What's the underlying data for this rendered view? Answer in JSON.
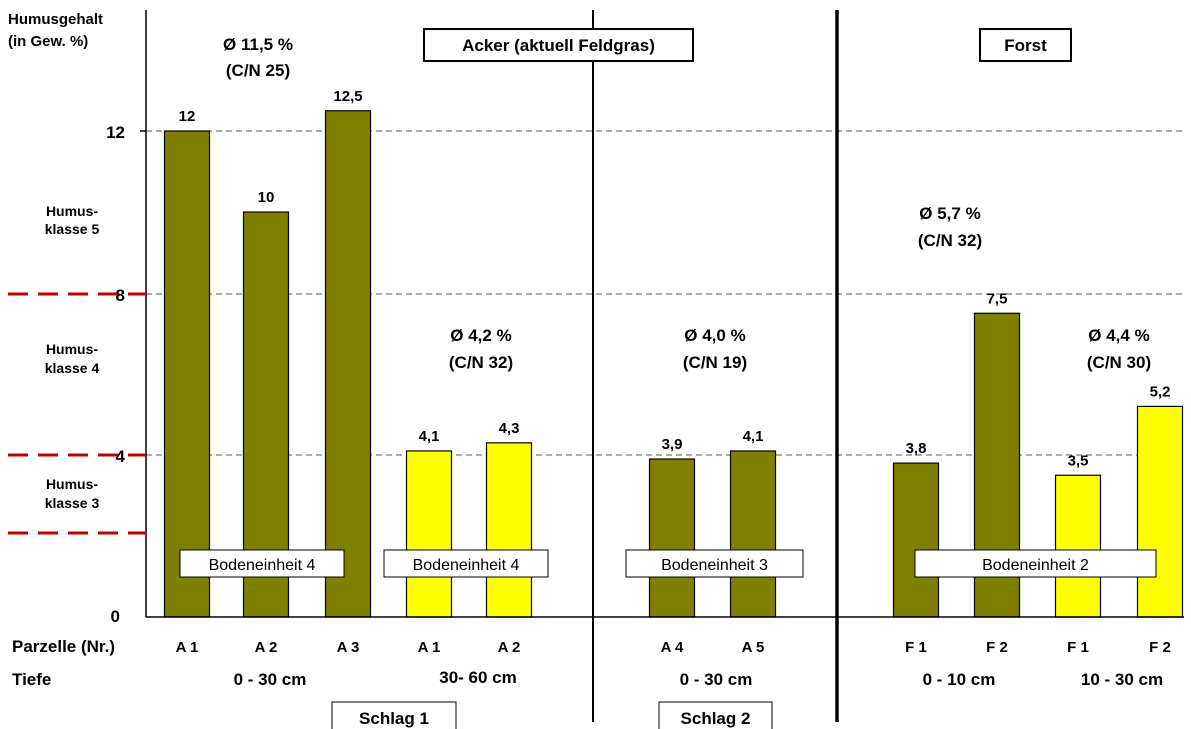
{
  "chart_data": {
    "type": "bar",
    "y_axis_label_line1": "Humusgehalt",
    "y_axis_label_line2": "(in Gew. %)",
    "ylim": [
      0,
      14.3
    ],
    "y_ticks": [
      "0",
      "4",
      "8",
      "12"
    ],
    "grid": "dashed at 4, 8, 12",
    "humus_classes": [
      {
        "line1": "Humus-",
        "line2": "klasse 5"
      },
      {
        "line1": "Humus-",
        "line2": "klasse 4"
      },
      {
        "line1": "Humus-",
        "line2": "klasse 3"
      }
    ],
    "row_labels": {
      "parzelle": "Parzelle (Nr.)",
      "tiefe": "Tiefe"
    },
    "colors": {
      "olive": "#808000",
      "yellow": "#ffff00",
      "class_marker": "#c00000"
    },
    "bars": [
      {
        "category": "A 1",
        "value": 12,
        "label": "12",
        "color": "olive"
      },
      {
        "category": "A 2",
        "value": 10,
        "label": "10",
        "color": "olive"
      },
      {
        "category": "A 3",
        "value": 12.5,
        "label": "12,5",
        "color": "olive"
      },
      {
        "category": "A 1",
        "value": 4.1,
        "label": "4,1",
        "color": "yellow"
      },
      {
        "category": "A 2",
        "value": 4.3,
        "label": "4,3",
        "color": "yellow"
      },
      {
        "category": "A 4",
        "value": 3.9,
        "label": "3,9",
        "color": "olive"
      },
      {
        "category": "A 5",
        "value": 4.1,
        "label": "4,1",
        "color": "olive"
      },
      {
        "category": "F 1",
        "value": 3.8,
        "label": "3,8",
        "color": "olive"
      },
      {
        "category": "F 2",
        "value": 7.5,
        "label": "7,5",
        "color": "olive"
      },
      {
        "category": "F 1",
        "value": 3.5,
        "label": "3,5",
        "color": "yellow"
      },
      {
        "category": "F 2",
        "value": 5.2,
        "label": "5,2",
        "color": "yellow"
      }
    ],
    "depths": [
      "0 - 30 cm",
      "30- 60 cm",
      "0 - 30 cm",
      "0 - 10 cm",
      "10 - 30 cm"
    ],
    "averages": [
      {
        "mean": "Ø 11,5 %",
        "cn": "(C/N 25)"
      },
      {
        "mean": "Ø 4,2 %",
        "cn": "(C/N 32)"
      },
      {
        "mean": "Ø 4,0 %",
        "cn": "(C/N 19)"
      },
      {
        "mean": "Ø 5,7 %",
        "cn": "(C/N 32)"
      },
      {
        "mean": "Ø 4,4 %",
        "cn": "(C/N 30)"
      }
    ],
    "soil_units": [
      "Bodeneinheit 4",
      "Bodeneinheit 4",
      "Bodeneinheit 3",
      "Bodeneinheit 2"
    ],
    "sections": [
      "Acker (aktuell Feldgras)",
      "Forst"
    ],
    "fields": [
      "Schlag 1",
      "Schlag 2"
    ]
  }
}
